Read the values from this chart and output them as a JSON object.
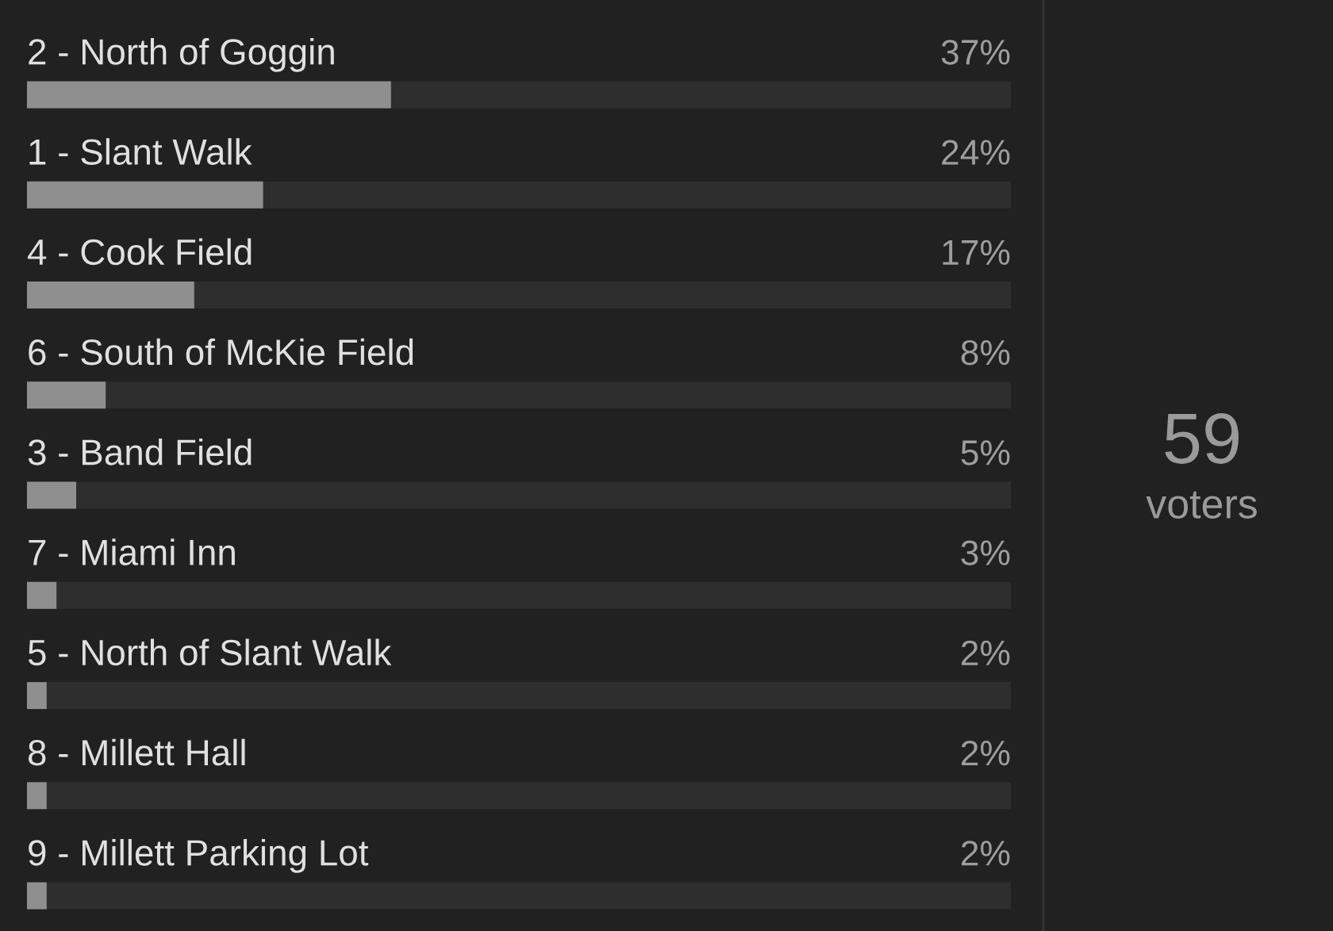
{
  "chart_data": {
    "type": "bar",
    "orientation": "horizontal",
    "categories": [
      "2 - North of Goggin",
      "1 - Slant Walk",
      "4 - Cook Field",
      "6 - South of McKie Field",
      "3 - Band Field",
      "7 - Miami Inn",
      "5 - North of Slant Walk",
      "8 - Millett Hall",
      "9 - Millett Parking Lot"
    ],
    "series": [
      {
        "color": "#8f8f8f",
        "values": [
          37,
          24,
          17,
          8,
          5,
          3,
          2,
          2,
          2
        ],
        "value_labels": [
          "37%",
          "24%",
          "17%",
          "8%",
          "5%",
          "3%",
          "2%",
          "2%",
          "2%"
        ]
      }
    ],
    "xlim": [
      0,
      100
    ],
    "tick_labels": "y",
    "annotations": [
      "59",
      "voters"
    ]
  }
}
